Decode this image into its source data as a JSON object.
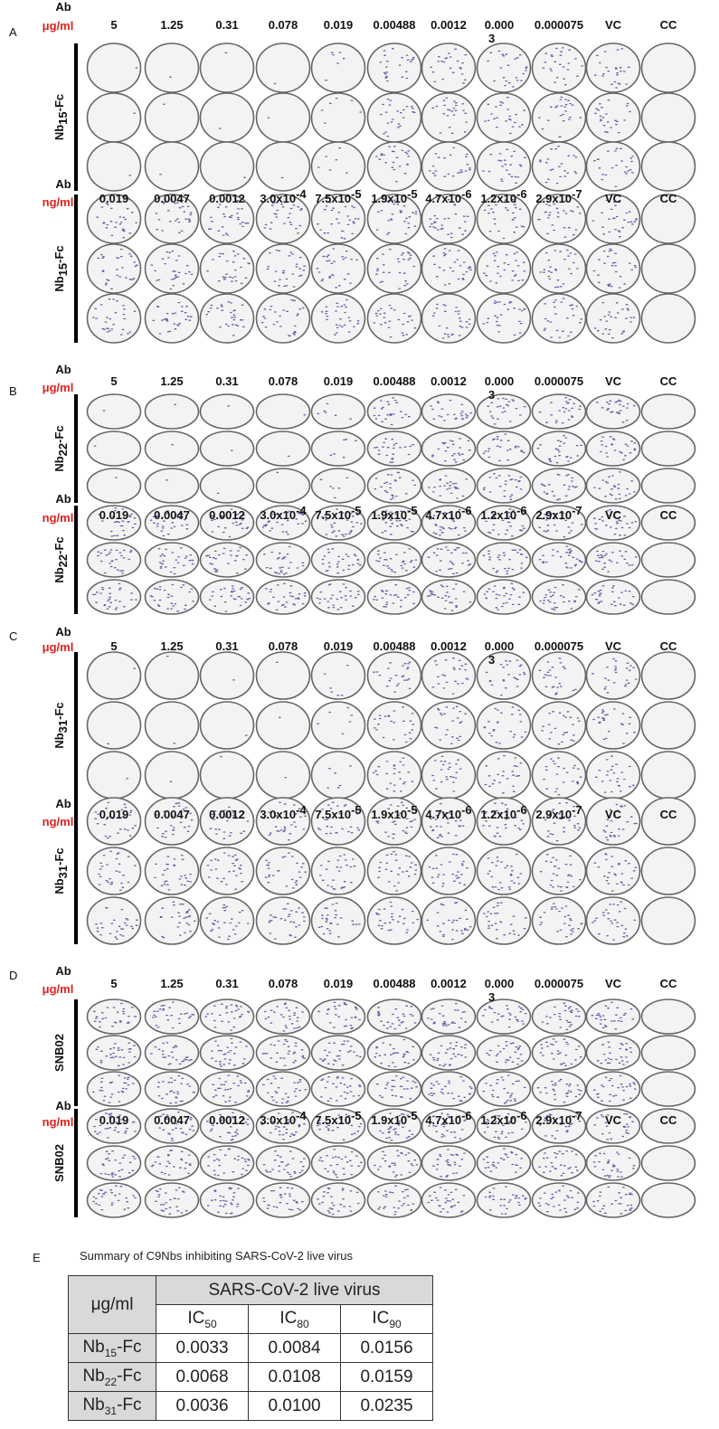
{
  "panels": [
    {
      "letter": "A",
      "blocks": [
        {
          "ab": "Ab",
          "unit": "μg/ml",
          "antibody": {
            "name": "Nb",
            "sub": "15",
            "suffix": "-Fc"
          },
          "columns": [
            "5",
            "1.25",
            "0.31",
            "0.078",
            "0.019",
            "0.00488",
            "0.0012",
            {
              "line1": "0.000",
              "line2": "3"
            },
            "0.000075",
            "VC",
            "CC"
          ]
        },
        {
          "ab": "Ab",
          "unit": "ng/ml",
          "antibody": {
            "name": "Nb",
            "sub": "15",
            "suffix": "-Fc"
          },
          "columns": [
            "0.019",
            "0.0047",
            "0.0012",
            {
              "base": "3.0x10",
              "exp": "-4"
            },
            {
              "base": "7.5x10",
              "exp": "-5"
            },
            {
              "base": "1.9x10",
              "exp": "-5"
            },
            {
              "base": "4.7x10",
              "exp": "-6"
            },
            {
              "base": "1.2x10",
              "exp": "-6"
            },
            {
              "base": "2.9x10",
              "exp": "-7"
            },
            "VC",
            "CC"
          ]
        }
      ]
    },
    {
      "letter": "B",
      "blocks": [
        {
          "ab": "Ab",
          "unit": "μg/ml",
          "antibody": {
            "name": "Nb",
            "sub": "22",
            "suffix": "-Fc"
          },
          "columns": [
            "5",
            "1.25",
            "0.31",
            "0.078",
            "0.019",
            "0.00488",
            "0.0012",
            {
              "line1": "0.000",
              "line2": "3"
            },
            "0.000075",
            "VC",
            "CC"
          ]
        },
        {
          "ab": "Ab",
          "unit": "ng/ml",
          "antibody": {
            "name": "Nb",
            "sub": "22",
            "suffix": "-Fc"
          },
          "columns": [
            "0.019",
            "0.0047",
            "0.0012",
            {
              "base": "3.0x10",
              "exp": "-4"
            },
            {
              "base": "7.5x10",
              "exp": "-5"
            },
            {
              "base": "1.9x10",
              "exp": "-5"
            },
            {
              "base": "4.7x10",
              "exp": "-6"
            },
            {
              "base": "1.2x10",
              "exp": "-6"
            },
            {
              "base": "2.9x10",
              "exp": "-7"
            },
            "VC",
            "CC"
          ]
        }
      ]
    },
    {
      "letter": "C",
      "blocks": [
        {
          "ab": "Ab",
          "unit": "μg/ml",
          "antibody": {
            "name": "Nb",
            "sub": "31",
            "suffix": "-Fc"
          },
          "columns": [
            "5",
            "1.25",
            "0.31",
            "0.078",
            "0.019",
            "0.00488",
            "0.0012",
            {
              "line1": "0.000",
              "line2": "3"
            },
            "0.000075",
            "VC",
            "CC"
          ]
        },
        {
          "ab": "Ab",
          "unit": "ng/ml",
          "antibody": {
            "name": "Nb",
            "sub": "31",
            "suffix": "-Fc"
          },
          "columns": [
            "0.019",
            "0.0047",
            "0.0012",
            {
              "base": "3.0x10",
              "exp": "-4"
            },
            {
              "base": "7.5x10",
              "exp": "-5"
            },
            {
              "base": "1.9x10",
              "exp": "-5"
            },
            {
              "base": "4.7x10",
              "exp": "-6"
            },
            {
              "base": "1.2x10",
              "exp": "-6"
            },
            {
              "base": "2.9x10",
              "exp": "-7"
            },
            "VC",
            "CC"
          ]
        }
      ]
    },
    {
      "letter": "D",
      "blocks": [
        {
          "ab": "Ab",
          "unit": "μg/ml",
          "antibody": {
            "name": "SNB02"
          },
          "columns": [
            "5",
            "1.25",
            "0.31",
            "0.078",
            "0.019",
            "0.00488",
            "0.0012",
            {
              "line1": "0.000",
              "line2": "3"
            },
            "0.000075",
            "VC",
            "CC"
          ]
        },
        {
          "ab": "Ab",
          "unit": "ng/ml",
          "antibody": {
            "name": "SNB02"
          },
          "columns": [
            "0.019",
            "0.0047",
            "0.0012",
            {
              "base": "3.0x10",
              "exp": "-4"
            },
            {
              "base": "7.5x10",
              "exp": "-5"
            },
            {
              "base": "1.9x10",
              "exp": "-5"
            },
            {
              "base": "4.7x10",
              "exp": "-6"
            },
            {
              "base": "1.2x10",
              "exp": "-6"
            },
            {
              "base": "2.9x10",
              "exp": "-7"
            },
            "VC",
            "CC"
          ]
        }
      ]
    }
  ],
  "summary": {
    "letter": "E",
    "title": "Summary of C9Nbs inhibiting SARS-CoV-2 live virus",
    "table": {
      "corner": "μg/ml",
      "group": "SARS-CoV-2 live virus",
      "columns": [
        {
          "main": "IC",
          "sub": "50"
        },
        {
          "main": "IC",
          "sub": "80"
        },
        {
          "main": "IC",
          "sub": "90"
        }
      ],
      "rows": [
        {
          "antibody": {
            "name": "Nb",
            "sub": "15",
            "suffix": "-Fc"
          },
          "values": [
            "0.0033",
            "0.0084",
            "0.0156"
          ]
        },
        {
          "antibody": {
            "name": "Nb",
            "sub": "22",
            "suffix": "-Fc"
          },
          "values": [
            "0.0068",
            "0.0108",
            "0.0159"
          ]
        },
        {
          "antibody": {
            "name": "Nb",
            "sub": "31",
            "suffix": "-Fc"
          },
          "values": [
            "0.0036",
            "0.0100",
            "0.0235"
          ]
        }
      ]
    }
  }
}
